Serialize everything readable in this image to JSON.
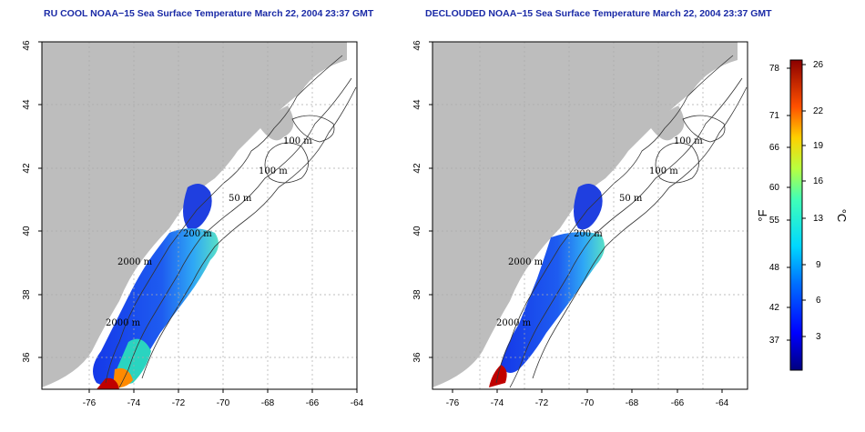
{
  "panels": [
    {
      "id": "left",
      "title": "RU COOL NOAA−15 Sea Surface Temperature March 22, 2004 23:37 GMT",
      "contour_labels": [
        "100 m",
        "100 m",
        "50 m",
        "200 m",
        "2000 m",
        "2000 m"
      ]
    },
    {
      "id": "right",
      "title": "DECLOUDED NOAA−15 Sea Surface Temperature March 22, 2004 23:37 GMT",
      "contour_labels": [
        "100 m",
        "100 m",
        "50 m",
        "200 m",
        "2000 m",
        "2000 m"
      ]
    }
  ],
  "axes": {
    "lon_ticks": [
      "-76",
      "-74",
      "-72",
      "-70",
      "-68",
      "-66",
      "-64"
    ],
    "lat_ticks": [
      "36",
      "38",
      "40",
      "42",
      "44",
      "46"
    ]
  },
  "colorbar": {
    "fahrenheit_ticks": [
      "78",
      "71",
      "66",
      "60",
      "55",
      "48",
      "42",
      "37"
    ],
    "celsius_ticks": [
      "26",
      "22",
      "19",
      "16",
      "13",
      "9",
      "6",
      "3"
    ],
    "unit_f": "°F",
    "unit_c": "°C"
  },
  "colors": {
    "title": "#1a2aa6",
    "land": "#bdbdbd",
    "cold": "#1f3fe0",
    "warm": "#3fc0ff",
    "hot": "#c00000"
  }
}
